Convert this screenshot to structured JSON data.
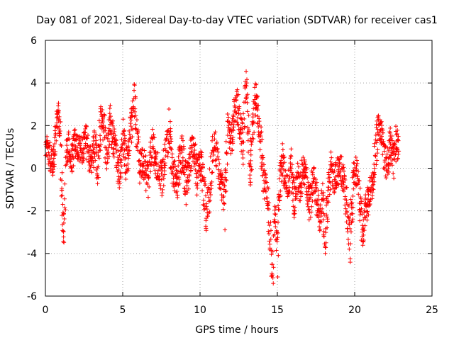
{
  "chart_data": {
    "type": "scatter",
    "title": "Day 081 of 2021, Sidereal Day-to-day VTEC variation (SDTVAR) for receiver cas1",
    "xlabel": "GPS time / hours",
    "ylabel": "SDTVAR / TECUs",
    "xlim": [
      0,
      25
    ],
    "ylim": [
      -6,
      6
    ],
    "xticks": [
      "0",
      "5",
      "10",
      "15",
      "20",
      "25"
    ],
    "yticks": [
      "-6",
      "-4",
      "-2",
      "0",
      "2",
      "4",
      "6"
    ],
    "grid": true,
    "marker": "+",
    "series_color": "#ff0000",
    "trace": [
      [
        0.0,
        0.8
      ],
      [
        0.1,
        0.9
      ],
      [
        0.2,
        0.8
      ],
      [
        0.35,
        0.3
      ],
      [
        0.45,
        0.1
      ],
      [
        0.55,
        0.5
      ],
      [
        0.65,
        1.5
      ],
      [
        0.75,
        2.2
      ],
      [
        0.85,
        2.4
      ],
      [
        0.95,
        2.0
      ],
      [
        1.05,
        -0.8
      ],
      [
        1.1,
        -2.2
      ],
      [
        1.18,
        -3.0
      ],
      [
        1.25,
        -1.8
      ],
      [
        1.35,
        0.6
      ],
      [
        1.5,
        1.0
      ],
      [
        1.7,
        0.5
      ],
      [
        1.9,
        1.2
      ],
      [
        2.1,
        1.0
      ],
      [
        2.4,
        0.8
      ],
      [
        2.6,
        1.5
      ],
      [
        2.8,
        0.6
      ],
      [
        3.0,
        0.2
      ],
      [
        3.2,
        1.2
      ],
      [
        3.4,
        0.0
      ],
      [
        3.6,
        2.4
      ],
      [
        3.8,
        1.8
      ],
      [
        4.0,
        0.4
      ],
      [
        4.2,
        2.2
      ],
      [
        4.4,
        1.2
      ],
      [
        4.6,
        0.6
      ],
      [
        4.8,
        -0.4
      ],
      [
        5.0,
        1.6
      ],
      [
        5.2,
        0.2
      ],
      [
        5.4,
        0.8
      ],
      [
        5.6,
        2.2
      ],
      [
        5.75,
        3.3
      ],
      [
        5.9,
        1.6
      ],
      [
        6.1,
        0.0
      ],
      [
        6.3,
        0.4
      ],
      [
        6.6,
        -0.6
      ],
      [
        6.9,
        1.2
      ],
      [
        7.2,
        0.2
      ],
      [
        7.5,
        -0.5
      ],
      [
        7.8,
        0.8
      ],
      [
        8.0,
        1.8
      ],
      [
        8.2,
        0.0
      ],
      [
        8.5,
        -0.6
      ],
      [
        8.8,
        0.8
      ],
      [
        9.1,
        -0.8
      ],
      [
        9.4,
        0.6
      ],
      [
        9.6,
        1.2
      ],
      [
        9.8,
        -0.4
      ],
      [
        10.0,
        0.4
      ],
      [
        10.2,
        -0.6
      ],
      [
        10.4,
        -2.2
      ],
      [
        10.6,
        -1.2
      ],
      [
        10.8,
        0.8
      ],
      [
        11.0,
        1.2
      ],
      [
        11.2,
        -0.2
      ],
      [
        11.4,
        -0.9
      ],
      [
        11.6,
        -1.6
      ],
      [
        11.8,
        1.8
      ],
      [
        12.0,
        1.2
      ],
      [
        12.2,
        2.6
      ],
      [
        12.4,
        3.0
      ],
      [
        12.6,
        2.0
      ],
      [
        12.8,
        1.0
      ],
      [
        12.9,
        3.6
      ],
      [
        13.0,
        4.0
      ],
      [
        13.1,
        2.4
      ],
      [
        13.2,
        -0.4
      ],
      [
        13.4,
        1.8
      ],
      [
        13.6,
        3.6
      ],
      [
        13.8,
        2.4
      ],
      [
        13.9,
        1.4
      ],
      [
        14.1,
        -0.4
      ],
      [
        14.3,
        -1.2
      ],
      [
        14.5,
        -2.6
      ],
      [
        14.6,
        -4.2
      ],
      [
        14.7,
        -5.4
      ],
      [
        14.8,
        -3.2
      ],
      [
        14.9,
        -2.0
      ],
      [
        15.0,
        -4.6
      ],
      [
        15.1,
        -1.4
      ],
      [
        15.3,
        0.6
      ],
      [
        15.5,
        -0.6
      ],
      [
        15.7,
        -0.8
      ],
      [
        15.9,
        0.2
      ],
      [
        16.1,
        -1.6
      ],
      [
        16.3,
        -0.4
      ],
      [
        16.5,
        -1.0
      ],
      [
        16.7,
        0.2
      ],
      [
        16.9,
        -0.6
      ],
      [
        17.1,
        -1.8
      ],
      [
        17.3,
        -0.4
      ],
      [
        17.5,
        -1.2
      ],
      [
        17.7,
        -2.4
      ],
      [
        17.9,
        -1.4
      ],
      [
        18.1,
        -3.0
      ],
      [
        18.3,
        -1.0
      ],
      [
        18.5,
        0.0
      ],
      [
        18.7,
        -0.6
      ],
      [
        18.9,
        -0.2
      ],
      [
        19.1,
        0.2
      ],
      [
        19.3,
        -0.8
      ],
      [
        19.5,
        -1.8
      ],
      [
        19.7,
        -3.4
      ],
      [
        19.9,
        -0.4
      ],
      [
        20.1,
        0.0
      ],
      [
        20.3,
        -1.2
      ],
      [
        20.5,
        -3.0
      ],
      [
        20.7,
        -2.0
      ],
      [
        20.9,
        -1.4
      ],
      [
        21.1,
        -0.8
      ],
      [
        21.3,
        0.4
      ],
      [
        21.5,
        1.8
      ],
      [
        21.7,
        2.0
      ],
      [
        21.9,
        0.6
      ],
      [
        22.1,
        0.0
      ],
      [
        22.3,
        1.2
      ],
      [
        22.5,
        0.2
      ],
      [
        22.7,
        1.4
      ],
      [
        22.85,
        0.8
      ]
    ]
  }
}
